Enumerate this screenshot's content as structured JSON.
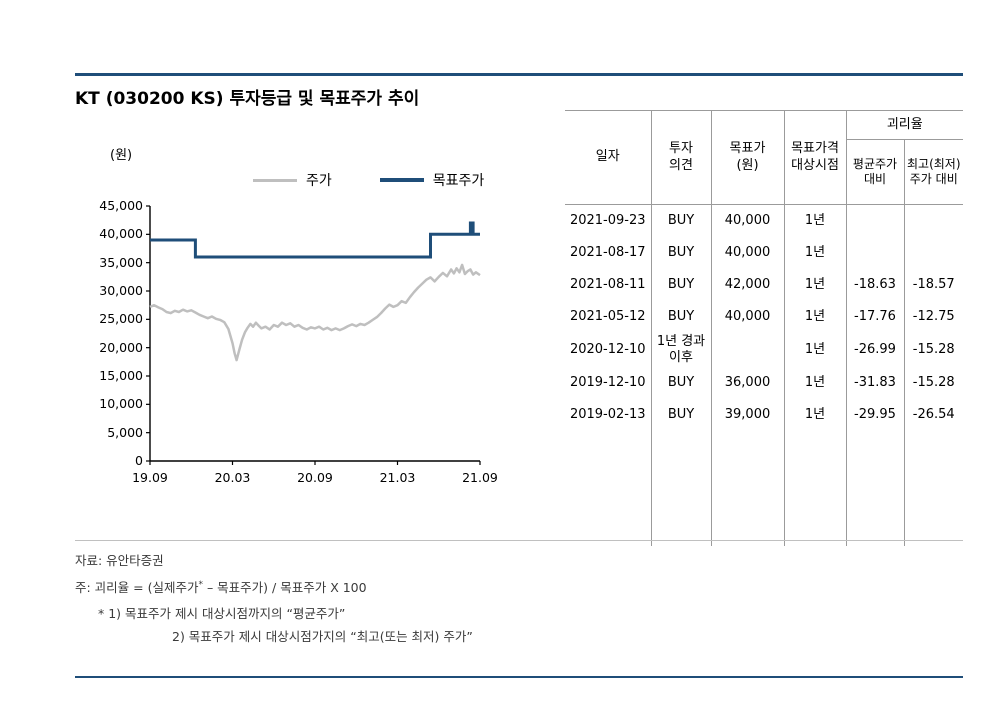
{
  "page": {
    "title": "KT (030200 KS) 투자등급 및 목표주가 추이",
    "accent_color": "#1F4E79"
  },
  "chart": {
    "unit_label": "(원)",
    "y_ticks": [
      "45,000",
      "40,000",
      "35,000",
      "30,000",
      "25,000",
      "20,000",
      "15,000",
      "10,000",
      "5,000",
      "0"
    ],
    "x_ticks": [
      "19.09",
      "20.03",
      "20.09",
      "21.03",
      "21.09"
    ],
    "legend": [
      {
        "label": "주가"
      },
      {
        "label": "목표주가"
      }
    ]
  },
  "chart_data": {
    "type": "line",
    "title": "KT (030200 KS) 투자등급 및 목표주가 추이",
    "ylabel": "원",
    "xlim": [
      0,
      24
    ],
    "ylim": [
      0,
      45000
    ],
    "x_tick_labels": [
      "19.09",
      "20.03",
      "20.09",
      "21.03",
      "21.09"
    ],
    "y_tick_values": [
      0,
      5000,
      10000,
      15000,
      20000,
      25000,
      30000,
      35000,
      40000,
      45000
    ],
    "grid": false,
    "legend_position": "top",
    "series": [
      {
        "name": "주가",
        "color": "#BFBFBF",
        "stroke_width": 2.5,
        "points": [
          [
            0,
            27200
          ],
          [
            0.3,
            27500
          ],
          [
            0.6,
            27100
          ],
          [
            0.9,
            26800
          ],
          [
            1.2,
            26300
          ],
          [
            1.5,
            26100
          ],
          [
            1.8,
            26500
          ],
          [
            2.1,
            26300
          ],
          [
            2.4,
            26700
          ],
          [
            2.7,
            26400
          ],
          [
            3,
            26600
          ],
          [
            3.3,
            26200
          ],
          [
            3.6,
            25800
          ],
          [
            3.9,
            25500
          ],
          [
            4.2,
            25200
          ],
          [
            4.5,
            25500
          ],
          [
            4.8,
            25100
          ],
          [
            5.1,
            24900
          ],
          [
            5.4,
            24500
          ],
          [
            5.7,
            23300
          ],
          [
            6,
            20800
          ],
          [
            6.15,
            19000
          ],
          [
            6.3,
            17800
          ],
          [
            6.5,
            19700
          ],
          [
            6.7,
            21400
          ],
          [
            6.9,
            22700
          ],
          [
            7.1,
            23500
          ],
          [
            7.3,
            24200
          ],
          [
            7.5,
            23700
          ],
          [
            7.7,
            24400
          ],
          [
            7.9,
            23900
          ],
          [
            8.1,
            23400
          ],
          [
            8.4,
            23700
          ],
          [
            8.7,
            23200
          ],
          [
            9,
            24000
          ],
          [
            9.3,
            23700
          ],
          [
            9.6,
            24400
          ],
          [
            9.9,
            24000
          ],
          [
            10.2,
            24300
          ],
          [
            10.5,
            23700
          ],
          [
            10.8,
            24000
          ],
          [
            11.1,
            23500
          ],
          [
            11.4,
            23200
          ],
          [
            11.7,
            23600
          ],
          [
            12,
            23400
          ],
          [
            12.3,
            23700
          ],
          [
            12.6,
            23200
          ],
          [
            12.9,
            23500
          ],
          [
            13.2,
            23100
          ],
          [
            13.5,
            23400
          ],
          [
            13.8,
            23100
          ],
          [
            14.1,
            23400
          ],
          [
            14.4,
            23800
          ],
          [
            14.7,
            24100
          ],
          [
            15,
            23800
          ],
          [
            15.3,
            24200
          ],
          [
            15.6,
            24000
          ],
          [
            15.9,
            24400
          ],
          [
            16.2,
            24900
          ],
          [
            16.5,
            25400
          ],
          [
            16.8,
            26100
          ],
          [
            17.1,
            26900
          ],
          [
            17.4,
            27600
          ],
          [
            17.7,
            27200
          ],
          [
            18,
            27500
          ],
          [
            18.3,
            28200
          ],
          [
            18.6,
            27900
          ],
          [
            18.9,
            28900
          ],
          [
            19.2,
            29800
          ],
          [
            19.5,
            30600
          ],
          [
            19.8,
            31300
          ],
          [
            20.1,
            32000
          ],
          [
            20.4,
            32400
          ],
          [
            20.7,
            31700
          ],
          [
            21,
            32500
          ],
          [
            21.3,
            33200
          ],
          [
            21.6,
            32600
          ],
          [
            21.9,
            33800
          ],
          [
            22.1,
            33100
          ],
          [
            22.3,
            34000
          ],
          [
            22.5,
            33300
          ],
          [
            22.7,
            34600
          ],
          [
            22.9,
            33000
          ],
          [
            23.1,
            33500
          ],
          [
            23.3,
            33800
          ],
          [
            23.5,
            32900
          ],
          [
            23.7,
            33300
          ],
          [
            24,
            32800
          ]
        ]
      },
      {
        "name": "목표주가",
        "color": "#1F4E79",
        "stroke_width": 3,
        "points": [
          [
            0,
            39000
          ],
          [
            3.3,
            39000
          ],
          [
            3.3,
            36000
          ],
          [
            20.4,
            36000
          ],
          [
            20.4,
            40000
          ],
          [
            23.3,
            40000
          ],
          [
            23.3,
            42000
          ],
          [
            23.5,
            42000
          ],
          [
            23.5,
            40000
          ],
          [
            24,
            40000
          ]
        ]
      }
    ]
  },
  "table": {
    "headers": {
      "date": "일자",
      "opinion": "투자\n의견",
      "target_price": "목표가\n(원)",
      "period": "목표가격\n대상시점",
      "disparity_group": "괴리율",
      "vs_avg": "평균주가\n대비",
      "vs_extreme": "최고(최저)\n주가 대비"
    },
    "rows": [
      [
        "2021-09-23",
        "BUY",
        "40,000",
        "1년",
        "",
        ""
      ],
      [
        "2021-08-17",
        "BUY",
        "40,000",
        "1년",
        "",
        ""
      ],
      [
        "2021-08-11",
        "BUY",
        "42,000",
        "1년",
        "-18.63",
        "-18.57"
      ],
      [
        "2021-05-12",
        "BUY",
        "40,000",
        "1년",
        "-17.76",
        "-12.75"
      ],
      [
        "2020-12-10",
        "1년 경과 이후",
        "",
        "1년",
        "-26.99",
        "-15.28"
      ],
      [
        "2019-12-10",
        "BUY",
        "36,000",
        "1년",
        "-31.83",
        "-15.28"
      ],
      [
        "2019-02-13",
        "BUY",
        "39,000",
        "1년",
        "-29.95",
        "-26.54"
      ]
    ]
  },
  "footer": {
    "source": "자료: 유안타증권",
    "formula_prefix": "주: 괴리율 = (실제주가",
    "formula_sup": "*",
    "formula_suffix": " – 목표주가) / 목표주가 X 100",
    "note_1": "* 1) 목표주가 제시 대상시점까지의 “평균주가”",
    "note_2": "2) 목표주가 제시 대상시점가지의 “최고(또는 최저) 주가”"
  }
}
